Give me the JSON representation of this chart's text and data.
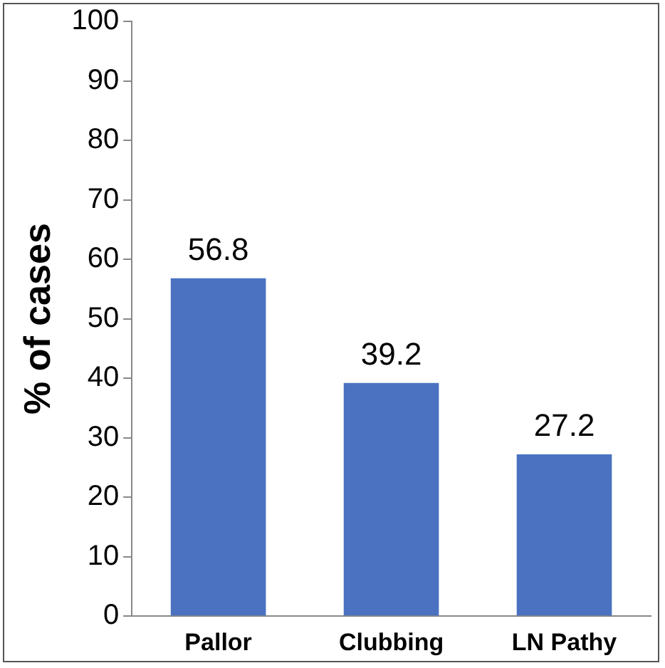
{
  "chart_data": {
    "type": "bar",
    "ylabel": "% of cases",
    "categories": [
      "Pallor",
      "Clubbing",
      "LN Pathy"
    ],
    "values": [
      56.8,
      39.2,
      27.2
    ],
    "color": "#4a72c0",
    "ylim": [
      0,
      100
    ],
    "yticks": [
      0,
      10,
      20,
      30,
      40,
      50,
      60,
      70,
      80,
      90,
      100
    ],
    "grid": false,
    "data_labels": true
  }
}
